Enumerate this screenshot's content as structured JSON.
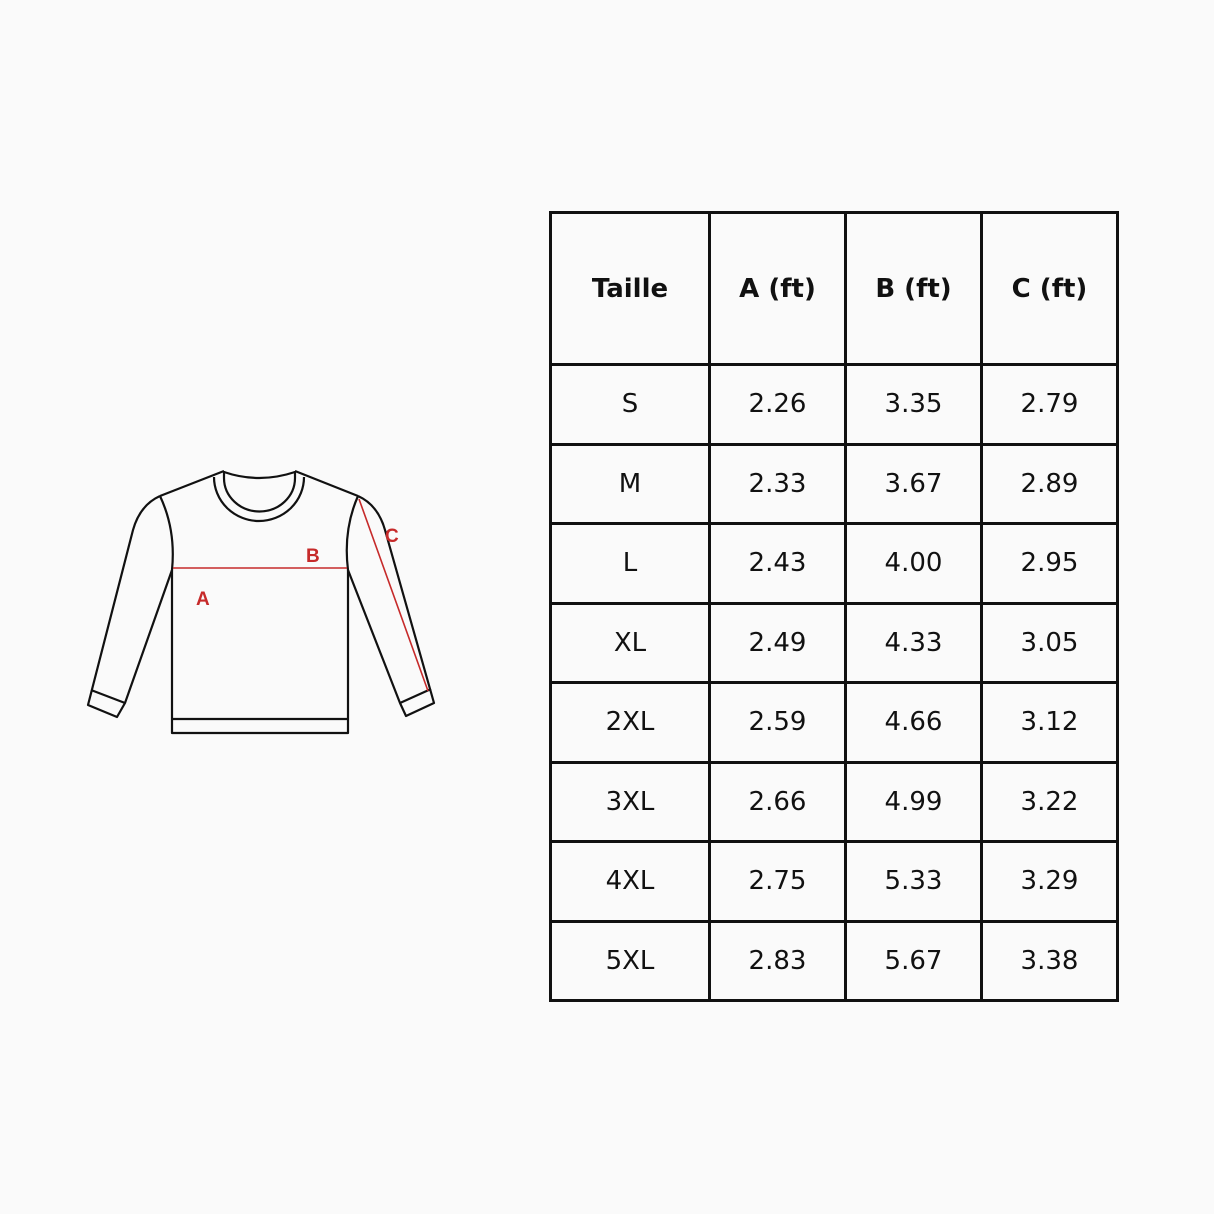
{
  "diagram": {
    "labels": {
      "a": "A",
      "b": "B",
      "c": "C"
    },
    "accent_color": "#c62a2a",
    "icon": "sweater-outline"
  },
  "table": {
    "headers": [
      "Taille",
      "A (ft)",
      "B (ft)",
      "C (ft)"
    ],
    "rows": [
      [
        "S",
        "2.26",
        "3.35",
        "2.79"
      ],
      [
        "M",
        "2.33",
        "3.67",
        "2.89"
      ],
      [
        "L",
        "2.43",
        "4.00",
        "2.95"
      ],
      [
        "XL",
        "2.49",
        "4.33",
        "3.05"
      ],
      [
        "2XL",
        "2.59",
        "4.66",
        "3.12"
      ],
      [
        "3XL",
        "2.66",
        "4.99",
        "3.22"
      ],
      [
        "4XL",
        "2.75",
        "5.33",
        "3.29"
      ],
      [
        "5XL",
        "2.83",
        "5.67",
        "3.38"
      ]
    ]
  }
}
